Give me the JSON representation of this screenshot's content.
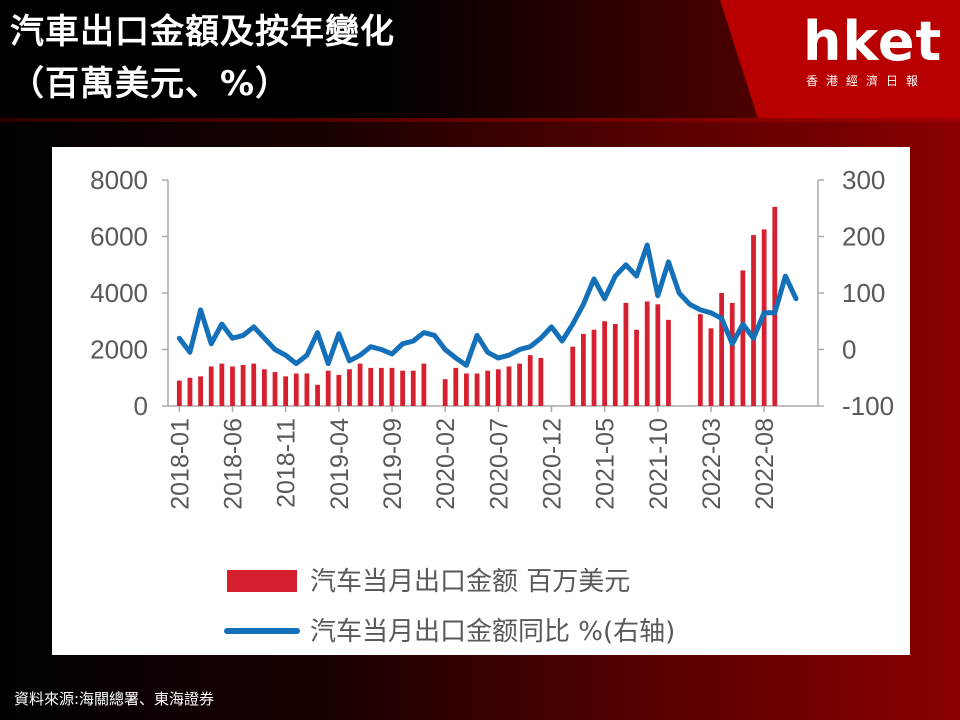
{
  "header": {
    "title_line1": "汽車出口金額及按年變化",
    "title_line2": "（百萬美元、%）",
    "logo_text": "hket",
    "logo_subtitle": "香港經濟日報"
  },
  "source": "資料來源:海關總署、東海證券",
  "colors": {
    "bar": "#d6202f",
    "line": "#1470b8",
    "accent": "#b80000"
  },
  "chart_data": {
    "type": "bar+line",
    "title": "",
    "xlabel": "",
    "ylabel": "",
    "categories": [
      "2018-01",
      "2018-02",
      "2018-03",
      "2018-04",
      "2018-05",
      "2018-06",
      "2018-07",
      "2018-08",
      "2018-09",
      "2018-10",
      "2018-11",
      "2018-12",
      "2019-01",
      "2019-02",
      "2019-03",
      "2019-04",
      "2019-05",
      "2019-06",
      "2019-07",
      "2019-08",
      "2019-09",
      "2019-10",
      "2019-11",
      "2019-12",
      "2020-01",
      "2020-02",
      "2020-03",
      "2020-04",
      "2020-05",
      "2020-06",
      "2020-07",
      "2020-08",
      "2020-09",
      "2020-10",
      "2020-11",
      "2020-12",
      "2021-01",
      "2021-02",
      "2021-03",
      "2021-04",
      "2021-05",
      "2021-06",
      "2021-07",
      "2021-08",
      "2021-09",
      "2021-10",
      "2021-11",
      "2021-12",
      "2022-01",
      "2022-02",
      "2022-03",
      "2022-04",
      "2022-05",
      "2022-06",
      "2022-07",
      "2022-08",
      "2022-09",
      "2022-10",
      "2022-11",
      "2022-12"
    ],
    "x_tick_labels": [
      "2018-01",
      "2018-06",
      "2018-11",
      "2019-04",
      "2019-09",
      "2020-02",
      "2020-07",
      "2020-12",
      "2021-05",
      "2021-10",
      "2022-03",
      "2022-08"
    ],
    "y_left": {
      "min": 0,
      "max": 8000,
      "ticks": [
        0,
        2000,
        4000,
        6000,
        8000
      ]
    },
    "y_right": {
      "min": -100,
      "max": 300,
      "ticks": [
        -100,
        0,
        100,
        200,
        300
      ]
    },
    "grid": false,
    "legend_position": "bottom",
    "series": [
      {
        "name": "汽车当月出口金额 百万美元",
        "type": "bar",
        "axis": "left",
        "values": [
          900,
          1000,
          1050,
          1400,
          1500,
          1400,
          1450,
          1500,
          1300,
          1200,
          1050,
          1150,
          1150,
          750,
          1250,
          1100,
          1300,
          1500,
          1350,
          1350,
          1350,
          1250,
          1250,
          1500,
          null,
          950,
          1350,
          1150,
          1150,
          1250,
          1300,
          1400,
          1500,
          1800,
          1700,
          null,
          null,
          2100,
          2550,
          2700,
          3000,
          2900,
          3650,
          2700,
          3700,
          3600,
          3050,
          null,
          null,
          3250,
          2750,
          4000,
          3650,
          4800,
          6050,
          6250,
          7050,
          null,
          null,
          null
        ],
        "color": "#d6202f"
      },
      {
        "name": "汽车当月出口金额同比 %(右轴)",
        "type": "line",
        "axis": "right",
        "values": [
          20,
          -5,
          70,
          10,
          45,
          20,
          25,
          40,
          20,
          0,
          -10,
          -25,
          -10,
          30,
          -25,
          28,
          -20,
          -10,
          5,
          0,
          -8,
          10,
          15,
          30,
          25,
          0,
          -15,
          -28,
          25,
          -5,
          -15,
          -10,
          0,
          5,
          20,
          40,
          15,
          45,
          80,
          125,
          90,
          130,
          150,
          130,
          185,
          95,
          155,
          100,
          80,
          70,
          65,
          55,
          10,
          45,
          20,
          65,
          65,
          130,
          90,
          null
        ]
      }
    ]
  }
}
